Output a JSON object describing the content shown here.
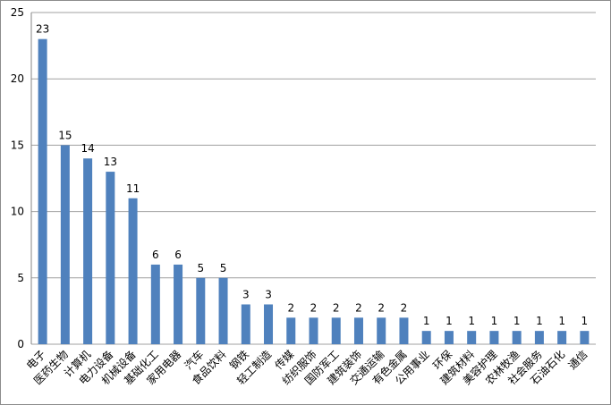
{
  "chart_data": {
    "type": "bar",
    "categories": [
      "电子",
      "医药生物",
      "计算机",
      "电力设备",
      "机械设备",
      "基础化工",
      "家用电器",
      "汽车",
      "食品饮料",
      "钢铁",
      "轻工制造",
      "传媒",
      "纺织服饰",
      "国防军工",
      "建筑装饰",
      "交通运输",
      "有色金属",
      "公用事业",
      "环保",
      "建筑材料",
      "美容护理",
      "农林牧渔",
      "社会服务",
      "石油石化",
      "通信"
    ],
    "values": [
      23,
      15,
      14,
      13,
      11,
      6,
      6,
      5,
      5,
      3,
      3,
      2,
      2,
      2,
      2,
      2,
      2,
      1,
      1,
      1,
      1,
      1,
      1,
      1,
      1
    ],
    "color": "#4f81bd",
    "ylim": [
      0,
      25
    ],
    "yticks": [
      0,
      5,
      10,
      15,
      20,
      25
    ],
    "grid": true
  }
}
